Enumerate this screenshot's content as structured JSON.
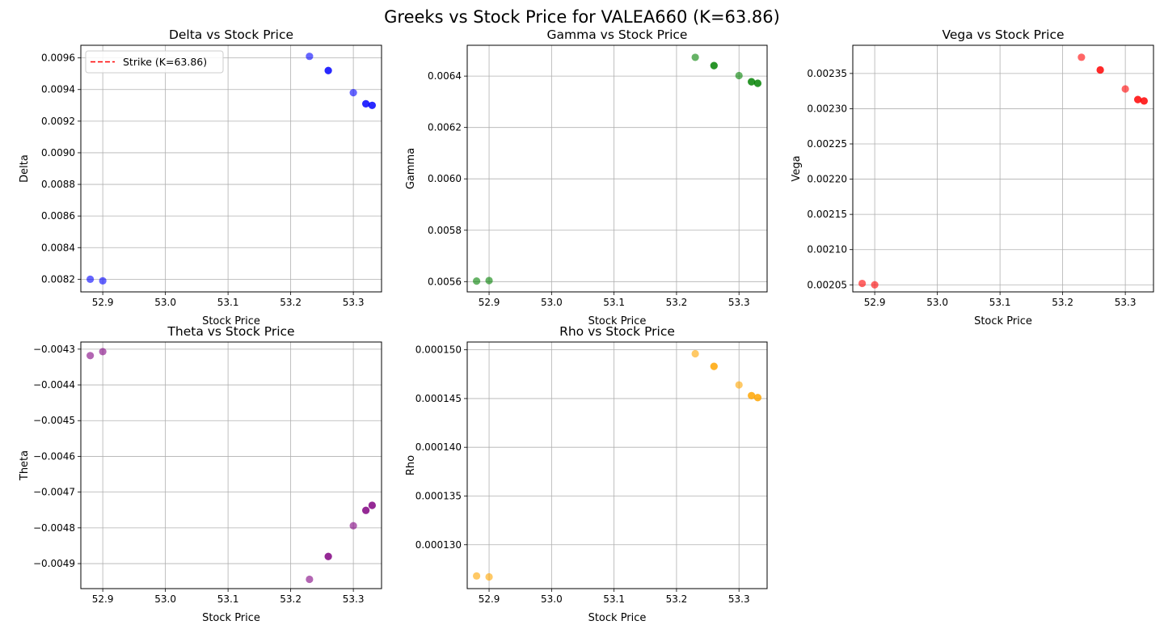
{
  "figure": {
    "title": "Greeks vs Stock Price for VALEA660 (K=63.86)"
  },
  "chart_data": [
    {
      "type": "scatter",
      "title": "Delta vs Stock Price",
      "xlabel": "Stock Price",
      "ylabel": "Delta",
      "xlim": [
        52.865,
        53.345
      ],
      "ylim": [
        0.00812,
        0.00968
      ],
      "xticks": [
        52.9,
        53.0,
        53.1,
        53.2,
        53.3
      ],
      "xtick_labels": [
        "52.9",
        "53.0",
        "53.1",
        "53.2",
        "53.3"
      ],
      "yticks": [
        0.0082,
        0.0084,
        0.0086,
        0.0088,
        0.009,
        0.0092,
        0.0094,
        0.0096
      ],
      "ytick_labels": [
        "0.0082",
        "0.0084",
        "0.0086",
        "0.0088",
        "0.0090",
        "0.0092",
        "0.0094",
        "0.0096"
      ],
      "grid": true,
      "color": "#0000ff",
      "x": [
        52.88,
        52.9,
        53.23,
        53.26,
        53.26,
        53.3,
        53.32,
        53.32,
        53.33,
        53.33
      ],
      "y": [
        0.0082,
        0.00819,
        0.00961,
        0.00952,
        0.00952,
        0.00938,
        0.00931,
        0.00931,
        0.0093,
        0.0093
      ],
      "legend": {
        "position": "top-left",
        "entries": [
          {
            "label": "Strike (K=63.86)",
            "color": "#ff0000",
            "style": "dashed"
          }
        ]
      }
    },
    {
      "type": "scatter",
      "title": "Gamma vs Stock Price",
      "xlabel": "Stock Price",
      "ylabel": "Gamma",
      "xlim": [
        52.865,
        53.345
      ],
      "ylim": [
        0.00556,
        0.00652
      ],
      "xticks": [
        52.9,
        53.0,
        53.1,
        53.2,
        53.3
      ],
      "xtick_labels": [
        "52.9",
        "53.0",
        "53.1",
        "53.2",
        "53.3"
      ],
      "yticks": [
        0.0056,
        0.0058,
        0.006,
        0.0062,
        0.0064
      ],
      "ytick_labels": [
        "0.0056",
        "0.0058",
        "0.0060",
        "0.0062",
        "0.0064"
      ],
      "grid": true,
      "color": "#008000",
      "x": [
        52.88,
        52.9,
        53.23,
        53.26,
        53.26,
        53.3,
        53.32,
        53.32,
        53.33,
        53.33
      ],
      "y": [
        0.005602,
        0.005604,
        0.006473,
        0.006441,
        0.006441,
        0.006402,
        0.006378,
        0.006378,
        0.006372,
        0.006372
      ]
    },
    {
      "type": "scatter",
      "title": "Vega vs Stock Price",
      "xlabel": "Stock Price",
      "ylabel": "Vega",
      "xlim": [
        52.865,
        53.345
      ],
      "ylim": [
        0.00204,
        0.00239
      ],
      "xticks": [
        52.9,
        53.0,
        53.1,
        53.2,
        53.3
      ],
      "xtick_labels": [
        "52.9",
        "53.0",
        "53.1",
        "53.2",
        "53.3"
      ],
      "yticks": [
        0.00205,
        0.0021,
        0.00215,
        0.0022,
        0.00225,
        0.0023,
        0.00235
      ],
      "ytick_labels": [
        "0.00205",
        "0.00210",
        "0.00215",
        "0.00220",
        "0.00225",
        "0.00230",
        "0.00235"
      ],
      "grid": true,
      "color": "#ff0000",
      "x": [
        52.88,
        52.9,
        53.23,
        53.26,
        53.26,
        53.3,
        53.32,
        53.32,
        53.33,
        53.33
      ],
      "y": [
        0.002052,
        0.00205,
        0.002373,
        0.002355,
        0.002355,
        0.002328,
        0.002313,
        0.002313,
        0.002311,
        0.002311
      ]
    },
    {
      "type": "scatter",
      "title": "Theta vs Stock Price",
      "xlabel": "Stock Price",
      "ylabel": "Theta",
      "xlim": [
        52.865,
        53.345
      ],
      "ylim": [
        -0.00497,
        -0.00428
      ],
      "xticks": [
        52.9,
        53.0,
        53.1,
        53.2,
        53.3
      ],
      "xtick_labels": [
        "52.9",
        "53.0",
        "53.1",
        "53.2",
        "53.3"
      ],
      "yticks": [
        -0.0043,
        -0.0044,
        -0.0045,
        -0.0046,
        -0.0047,
        -0.0048,
        -0.0049
      ],
      "ytick_labels": [
        "−0.0043",
        "−0.0044",
        "−0.0045",
        "−0.0046",
        "−0.0047",
        "−0.0048",
        "−0.0049"
      ],
      "grid": true,
      "color": "#800080",
      "x": [
        52.88,
        52.9,
        53.23,
        53.26,
        53.26,
        53.3,
        53.32,
        53.32,
        53.33,
        53.33
      ],
      "y": [
        -0.004318,
        -0.004307,
        -0.004944,
        -0.00488,
        -0.00488,
        -0.004794,
        -0.004751,
        -0.004751,
        -0.004737,
        -0.004737
      ]
    },
    {
      "type": "scatter",
      "title": "Rho vs Stock Price",
      "xlabel": "Stock Price",
      "ylabel": "Rho",
      "xlim": [
        52.865,
        53.345
      ],
      "ylim": [
        0.0001255,
        0.0001508
      ],
      "xticks": [
        52.9,
        53.0,
        53.1,
        53.2,
        53.3
      ],
      "xtick_labels": [
        "52.9",
        "53.0",
        "53.1",
        "53.2",
        "53.3"
      ],
      "yticks": [
        0.00013,
        0.000135,
        0.00014,
        0.000145,
        0.00015
      ],
      "ytick_labels": [
        "0.000130",
        "0.000135",
        "0.000140",
        "0.000145",
        "0.000150"
      ],
      "grid": true,
      "color": "#ffa500",
      "x": [
        52.88,
        52.9,
        53.23,
        53.26,
        53.26,
        53.3,
        53.32,
        53.32,
        53.33,
        53.33
      ],
      "y": [
        0.0001268,
        0.0001267,
        0.0001496,
        0.0001483,
        0.0001483,
        0.0001464,
        0.0001453,
        0.0001453,
        0.0001451,
        0.0001451
      ]
    }
  ]
}
